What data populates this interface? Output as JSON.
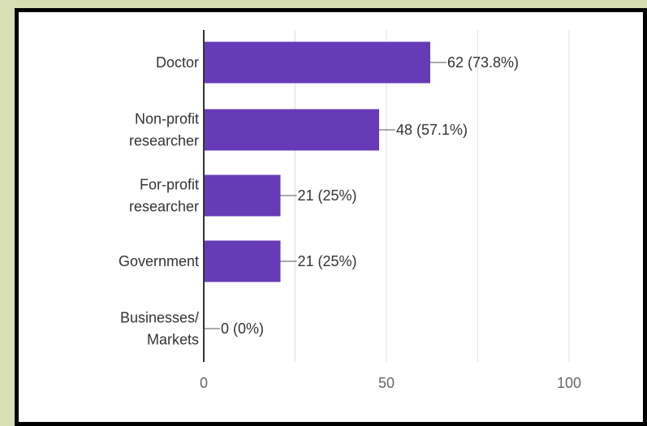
{
  "chart_data": {
    "type": "bar",
    "orientation": "horizontal",
    "categories": [
      [
        "Doctor"
      ],
      [
        "Non-profit",
        "researcher"
      ],
      [
        "For-profit",
        "researcher"
      ],
      [
        "Government"
      ],
      [
        "Businesses/",
        "Markets"
      ]
    ],
    "values": [
      62,
      48,
      21,
      21,
      0
    ],
    "data_labels": [
      "62 (73.8%)",
      "48 (57.1%)",
      "21 (25%)",
      "21 (25%)",
      "0 (0%)"
    ],
    "xlim": [
      0,
      100
    ],
    "xticks": [
      0,
      50,
      100
    ],
    "grid": true,
    "title": "",
    "xlabel": "",
    "ylabel": "",
    "colors": {
      "bar": "#673ab7",
      "grid": "#e0e0e0",
      "axis": "#333333",
      "background": "#d8dfb4",
      "card": "#ffffff",
      "frame": "#000000"
    }
  }
}
